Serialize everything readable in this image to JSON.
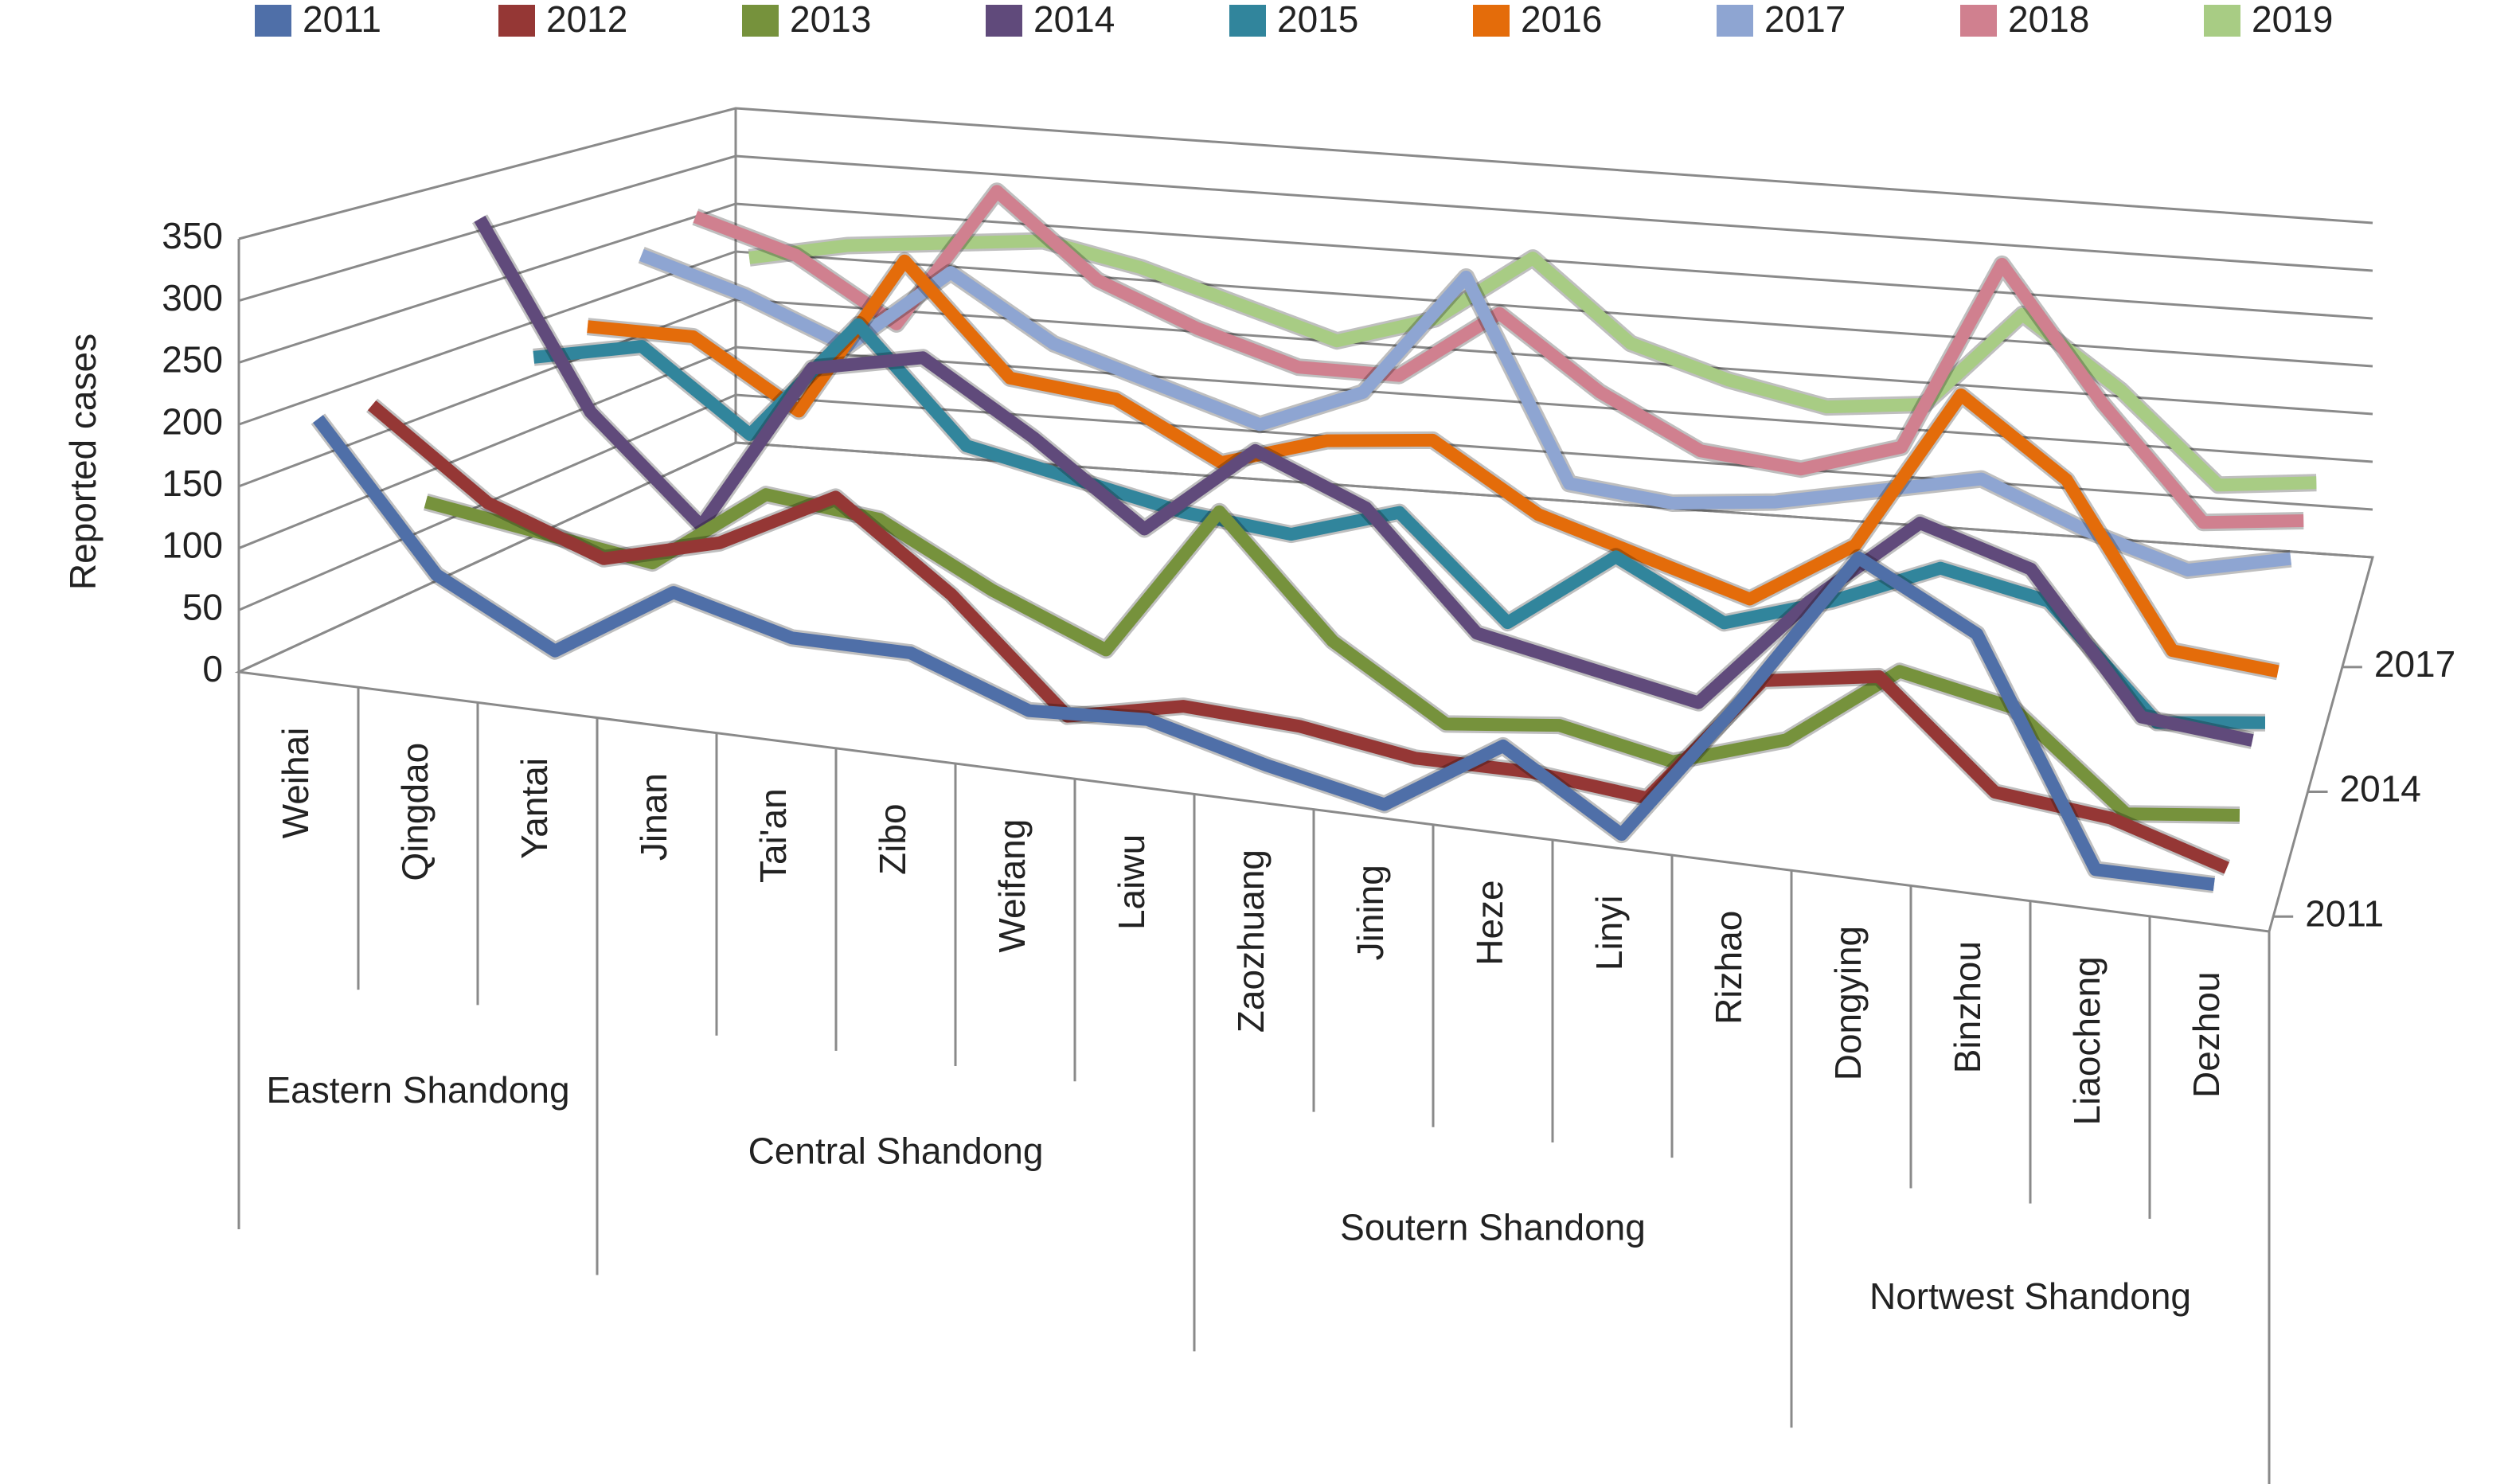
{
  "chart_data": {
    "type": "line3d",
    "ylabel": "Reported cases",
    "categories": [
      "Weihai",
      "Qingdao",
      "Yantai",
      "Jinan",
      "Tai'an",
      "Zibo",
      "Weifang",
      "Laiwu",
      "Zaozhuang",
      "Jining",
      "Heze",
      "Linyi",
      "Rizhao",
      "Dongying",
      "Binzhou",
      "Liaocheng",
      "Dezhou"
    ],
    "groups": [
      {
        "name": "Eastern Shandong",
        "members": [
          "Weihai",
          "Qingdao",
          "Yantai"
        ]
      },
      {
        "name": "Central Shandong",
        "members": [
          "Jinan",
          "Tai'an",
          "Zibo",
          "Weifang",
          "Laiwu"
        ]
      },
      {
        "name": "Soutern Shandong",
        "members": [
          "Zaozhuang",
          "Jining",
          "Heze",
          "Linyi",
          "Rizhao"
        ]
      },
      {
        "name": "Nortwest Shandong",
        "members": [
          "Dongying",
          "Binzhou",
          "Liaocheng",
          "Dezhou"
        ]
      }
    ],
    "series": [
      {
        "name": "2011",
        "color": "#4f6fa8",
        "values": [
          205,
          90,
          40,
          100,
          75,
          75,
          40,
          45,
          20,
          0,
          60,
          0,
          120,
          250,
          200,
          20,
          20
        ]
      },
      {
        "name": "2012",
        "color": "#953735",
        "values": [
          200,
          130,
          95,
          120,
          170,
          100,
          10,
          30,
          25,
          10,
          10,
          0,
          110,
          125,
          40,
          30,
          0
        ]
      },
      {
        "name": "2013",
        "color": "#76923c",
        "values": [
          100,
          85,
          70,
          140,
          130,
          80,
          40,
          170,
          70,
          10,
          20,
          0,
          30,
          100,
          80,
          0,
          10
        ]
      },
      {
        "name": "2014",
        "color": "#604a7b",
        "values": [
          330,
          170,
          80,
          230,
          250,
          190,
          120,
          200,
          160,
          60,
          40,
          20,
          120,
          200,
          170,
          50,
          40
        ]
      },
      {
        "name": "2015",
        "color": "#31859c",
        "values": [
          190,
          210,
          140,
          250,
          150,
          130,
          110,
          100,
          130,
          40,
          110,
          60,
          90,
          130,
          110,
          10,
          20
        ]
      },
      {
        "name": "2016",
        "color": "#e46c0a",
        "values": [
          200,
          200,
          140,
          290,
          190,
          180,
          130,
          160,
          170,
          110,
          80,
          50,
          110,
          260,
          190,
          40,
          30
        ]
      },
      {
        "name": "2017",
        "color": "#8ea5d2",
        "values": [
          250,
          220,
          180,
          260,
          200,
          170,
          140,
          180,
          300,
          110,
          100,
          110,
          130,
          150,
          110,
          80,
          100
        ]
      },
      {
        "name": "2018",
        "color": "#d0808f",
        "values": [
          270,
          240,
          180,
          320,
          240,
          200,
          170,
          170,
          240,
          170,
          120,
          110,
          140,
          330,
          200,
          90,
          100
        ]
      },
      {
        "name": "2019",
        "color": "#a8cc84",
        "values": [
          210,
          230,
          240,
          250,
          230,
          200,
          170,
          200,
          270,
          190,
          160,
          140,
          150,
          250,
          180,
          90,
          100
        ]
      }
    ],
    "ylim": [
      0,
      350
    ],
    "yticks": [
      0,
      50,
      100,
      150,
      200,
      250,
      300,
      350
    ],
    "zticks": [
      2011,
      2014,
      2017
    ],
    "grid": true
  }
}
